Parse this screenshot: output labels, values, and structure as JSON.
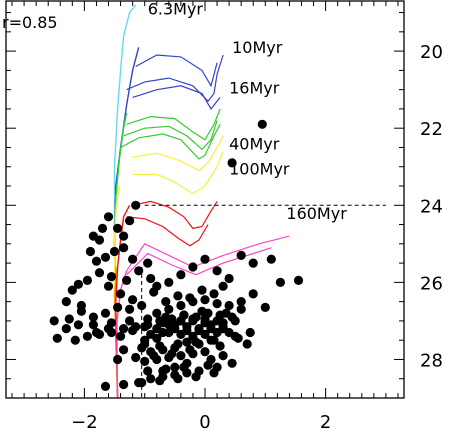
{
  "chart_data": {
    "type": "scatter",
    "title": "",
    "xlabel": "",
    "ylabel": "",
    "xlim": [
      -3.3,
      3.3
    ],
    "ylim": [
      18.7,
      29.0
    ],
    "y_inverted": true,
    "y_axis_side": "right",
    "grid": false,
    "xticks": [
      -2,
      0,
      2
    ],
    "xtick_labels": [
      "−2",
      "0",
      "2"
    ],
    "yticks": [
      20,
      22,
      24,
      26,
      28
    ],
    "ytick_labels": [
      "20",
      "22",
      "24",
      "26",
      "28"
    ],
    "corner_label": "r=0.85",
    "guide_line": {
      "y": 24.0,
      "x_from": -1.0,
      "x_to": 3.0,
      "x_drop": -1.05,
      "style": "dashed",
      "color": "#000000"
    },
    "isochrones": [
      {
        "name": "6.3Myr",
        "color": "#66d9ef",
        "label_at": [
          -0.95,
          19.05
        ],
        "ms": [
          [
            -1.45,
            29.0
          ],
          [
            -1.48,
            27.0
          ],
          [
            -1.5,
            25.0
          ],
          [
            -1.5,
            23.0
          ],
          [
            -1.45,
            21.5
          ],
          [
            -1.4,
            20.5
          ],
          [
            -1.35,
            19.6
          ],
          [
            -1.25,
            19.0
          ],
          [
            -1.15,
            18.8
          ]
        ],
        "branches": []
      },
      {
        "name": "10Myr",
        "color": "#3344cc",
        "label_at": [
          0.45,
          20.05
        ],
        "ms": [
          [
            -1.45,
            29.0
          ],
          [
            -1.48,
            27.0
          ],
          [
            -1.5,
            25.0
          ],
          [
            -1.48,
            23.5
          ],
          [
            -1.4,
            22.5
          ],
          [
            -1.3,
            21.4
          ],
          [
            -1.2,
            20.5
          ],
          [
            -1.1,
            19.9
          ]
        ],
        "branches": [
          [
            [
              -1.3,
              21.0
            ],
            [
              -1.0,
              20.8
            ],
            [
              -0.6,
              20.7
            ],
            [
              -0.2,
              20.9
            ],
            [
              0.05,
              21.3
            ],
            [
              0.15,
              21.1
            ],
            [
              0.2,
              20.6
            ],
            [
              0.3,
              20.1
            ]
          ],
          [
            [
              -1.15,
              20.4
            ],
            [
              -0.8,
              20.1
            ],
            [
              -0.4,
              20.15
            ],
            [
              -0.05,
              20.5
            ],
            [
              0.1,
              20.9
            ],
            [
              0.2,
              20.3
            ]
          ],
          [
            [
              -1.2,
              21.2
            ],
            [
              -0.8,
              21.0
            ],
            [
              -0.4,
              20.9
            ],
            [
              -0.05,
              21.1
            ],
            [
              0.1,
              21.5
            ],
            [
              0.25,
              21.2
            ]
          ]
        ]
      },
      {
        "name": "16Myr",
        "color": "#33cc33",
        "label_at": [
          0.4,
          21.1
        ],
        "ms": [
          [
            -1.45,
            29.0
          ],
          [
            -1.48,
            27.0
          ],
          [
            -1.5,
            25.0
          ],
          [
            -1.48,
            23.8
          ],
          [
            -1.42,
            22.8
          ],
          [
            -1.35,
            22.0
          ],
          [
            -1.3,
            21.6
          ]
        ],
        "branches": [
          [
            [
              -1.4,
              22.5
            ],
            [
              -1.1,
              22.25
            ],
            [
              -0.7,
              22.15
            ],
            [
              -0.4,
              22.3
            ],
            [
              -0.1,
              22.8
            ],
            [
              0.0,
              22.7
            ],
            [
              0.15,
              22.2
            ],
            [
              0.25,
              21.9
            ]
          ],
          [
            [
              -1.3,
              21.9
            ],
            [
              -0.9,
              21.7
            ],
            [
              -0.5,
              21.75
            ],
            [
              -0.2,
              22.1
            ],
            [
              0.0,
              22.3
            ],
            [
              0.15,
              21.9
            ],
            [
              0.25,
              21.5
            ]
          ],
          [
            [
              -1.35,
              22.2
            ],
            [
              -1.0,
              22.0
            ],
            [
              -0.6,
              21.95
            ],
            [
              -0.3,
              22.2
            ],
            [
              -0.05,
              22.55
            ],
            [
              0.1,
              22.3
            ],
            [
              0.2,
              21.8
            ]
          ]
        ]
      },
      {
        "name": "40Myr",
        "color": "#f2f23a",
        "label_at": [
          0.4,
          22.55
        ],
        "ms": [
          [
            -1.45,
            29.0
          ],
          [
            -1.48,
            27.5
          ],
          [
            -1.5,
            26.0
          ],
          [
            -1.5,
            24.8
          ],
          [
            -1.47,
            24.0
          ],
          [
            -1.42,
            23.5
          ]
        ],
        "branches": [
          [
            [
              -1.2,
              23.2
            ],
            [
              -0.8,
              23.2
            ],
            [
              -0.5,
              23.4
            ],
            [
              -0.2,
              23.7
            ],
            [
              0.0,
              23.5
            ],
            [
              0.2,
              23.0
            ],
            [
              0.3,
              22.6
            ]
          ],
          [
            [
              -1.2,
              22.75
            ],
            [
              -0.8,
              22.65
            ],
            [
              -0.4,
              22.85
            ],
            [
              -0.1,
              23.1
            ],
            [
              0.05,
              22.9
            ],
            [
              0.2,
              22.5
            ],
            [
              0.3,
              22.2
            ]
          ]
        ]
      },
      {
        "name": "100Myr",
        "color": "#ff9900",
        "label_at": [
          0.4,
          23.2
        ],
        "ms": [
          [
            -1.45,
            29.0
          ],
          [
            -1.48,
            27.5
          ],
          [
            -1.5,
            26.3
          ],
          [
            -1.46,
            25.6
          ]
        ],
        "branches": []
      },
      {
        "name": "160Myr",
        "color": "#ee1111",
        "label_at": [
          1.35,
          24.35
        ],
        "ms": [
          [
            -1.45,
            29.0
          ],
          [
            -1.47,
            27.5
          ],
          [
            -1.48,
            26.5
          ],
          [
            -1.45,
            25.6
          ],
          [
            -1.4,
            24.9
          ],
          [
            -1.35,
            24.3
          ],
          [
            -1.25,
            24.0
          ]
        ],
        "branches": [
          [
            [
              -1.2,
              24.0
            ],
            [
              -0.9,
              23.9
            ],
            [
              -0.6,
              24.05
            ],
            [
              -0.35,
              24.3
            ],
            [
              -0.2,
              24.6
            ],
            [
              -0.05,
              24.55
            ],
            [
              0.1,
              24.15
            ],
            [
              0.2,
              23.9
            ]
          ],
          [
            [
              -1.3,
              24.3
            ],
            [
              -1.0,
              24.35
            ],
            [
              -0.7,
              24.55
            ],
            [
              -0.45,
              24.85
            ],
            [
              -0.25,
              25.05
            ],
            [
              -0.1,
              24.9
            ],
            [
              0.05,
              24.5
            ]
          ]
        ]
      },
      {
        "name": "",
        "color": "#ff44cc",
        "label_at": null,
        "ms": [
          [
            -1.45,
            29.0
          ],
          [
            -1.46,
            28.0
          ],
          [
            -1.46,
            27.0
          ],
          [
            -1.4,
            26.2
          ],
          [
            -1.3,
            25.7
          ]
        ],
        "branches": [
          [
            [
              -1.3,
              25.7
            ],
            [
              -1.0,
              25.0
            ],
            [
              -0.6,
              25.3
            ],
            [
              -0.2,
              25.6
            ],
            [
              0.3,
              25.3
            ],
            [
              0.9,
              25.0
            ],
            [
              1.4,
              24.8
            ]
          ],
          [
            [
              -1.3,
              25.8
            ],
            [
              -0.95,
              25.25
            ],
            [
              -0.55,
              25.55
            ],
            [
              -0.15,
              25.8
            ],
            [
              0.3,
              25.5
            ],
            [
              0.8,
              25.25
            ],
            [
              1.1,
              25.1
            ]
          ]
        ]
      }
    ],
    "points": {
      "x": [
        0.95,
        0.45,
        -1.15,
        -1.25,
        -1.35,
        -1.45,
        -1.6,
        -1.7,
        -1.75,
        -1.85,
        -1.9,
        -1.8,
        -1.65,
        -1.5,
        -1.35,
        -1.2,
        -1.1,
        -0.95,
        -0.9,
        -1.3,
        -1.55,
        -1.75,
        -1.95,
        -2.1,
        -2.2,
        -2.3,
        -2.05,
        -1.6,
        -1.4,
        -1.2,
        -0.8,
        -0.6,
        -0.4,
        -0.2,
        0.0,
        0.2,
        0.4,
        0.6,
        0.8,
        1.1,
        1.25,
        1.55,
        0.3,
        0.15,
        -0.05,
        -0.25,
        -0.45,
        -0.65,
        -0.85,
        -1.05,
        -1.25,
        -1.45,
        -1.65,
        -1.85,
        -2.05,
        -2.25,
        -2.5,
        -2.3,
        -2.1,
        -1.8,
        -1.6,
        -1.4,
        -1.2,
        -1.0,
        -0.8,
        -0.6,
        -0.4,
        -0.2,
        0.0,
        0.2,
        0.4,
        0.6,
        0.45,
        0.25,
        0.05,
        -0.15,
        -0.35,
        -0.55,
        -0.75,
        -0.95,
        -1.15,
        -1.35,
        -1.55,
        -1.75,
        -1.95,
        -2.15,
        -2.45,
        -0.7,
        -0.5,
        -0.3,
        -0.1,
        0.1,
        0.3,
        0.5,
        -0.6,
        -0.4,
        -0.2,
        0.0,
        0.2,
        -0.8,
        -1.0,
        -0.3,
        -0.1,
        0.1,
        -0.5,
        -0.7,
        -0.9,
        0.3,
        0.5,
        0.7,
        0.0,
        -0.2,
        -0.4,
        -0.6,
        -0.8,
        -1.0,
        -0.3,
        -0.5,
        -0.7,
        0.1,
        0.3,
        0.2,
        -0.1,
        -0.3,
        -0.5,
        -0.7,
        -0.9,
        -1.1,
        -0.2,
        -0.4,
        0.0,
        0.4,
        0.6,
        0.8,
        1.0,
        0.35,
        -0.05,
        -0.35,
        -0.65,
        -0.95,
        -1.25,
        -1.55,
        -1.85,
        0.15,
        -0.15,
        -0.45,
        -0.75,
        -1.05,
        -1.35,
        0.55,
        0.75,
        0.25,
        -0.25,
        -0.55,
        -0.85,
        -1.15,
        -1.45,
        0.05,
        -0.35,
        -0.65,
        -0.95,
        0.45,
        0.15,
        -0.15,
        -0.45,
        -0.75,
        -1.05,
        -1.35,
        -1.65,
        -0.5,
        -0.3,
        -0.1,
        0.1,
        0.3,
        -0.7,
        -0.9,
        -0.2,
        0.0,
        -0.4,
        -0.6,
        0.2,
        -0.8,
        -1.0
      ],
      "y": [
        21.9,
        22.9,
        24.0,
        24.4,
        24.8,
        24.6,
        24.3,
        24.6,
        24.9,
        24.8,
        25.2,
        25.45,
        25.35,
        25.2,
        25.1,
        25.4,
        25.7,
        25.5,
        25.9,
        25.95,
        25.85,
        25.75,
        25.95,
        26.05,
        26.2,
        26.5,
        26.6,
        26.1,
        26.3,
        26.45,
        26.1,
        26.0,
        25.8,
        25.6,
        25.4,
        25.7,
        25.9,
        25.3,
        25.5,
        25.4,
        26.0,
        25.95,
        26.1,
        26.3,
        26.2,
        26.4,
        26.35,
        26.5,
        26.25,
        26.6,
        26.7,
        26.65,
        26.8,
        26.9,
        26.75,
        26.95,
        27.0,
        27.2,
        27.1,
        27.3,
        27.2,
        27.4,
        27.25,
        27.5,
        26.8,
        26.7,
        26.6,
        26.5,
        26.45,
        26.55,
        26.6,
        26.7,
        26.9,
        26.85,
        26.8,
        26.9,
        26.85,
        26.95,
        27.0,
        27.1,
        27.15,
        27.2,
        27.3,
        27.35,
        27.4,
        27.5,
        27.45,
        27.05,
        27.1,
        27.15,
        27.2,
        27.1,
        27.05,
        27.0,
        27.3,
        27.35,
        27.4,
        27.35,
        27.3,
        27.45,
        27.6,
        27.55,
        27.6,
        27.5,
        27.7,
        27.75,
        27.8,
        27.2,
        27.4,
        27.6,
        27.8,
        27.85,
        27.9,
        27.95,
        28.0,
        28.05,
        28.1,
        28.2,
        28.3,
        28.0,
        27.9,
        28.2,
        28.3,
        28.35,
        28.4,
        28.45,
        28.5,
        28.6,
        27.0,
        27.0,
        26.95,
        27.3,
        26.5,
        26.3,
        26.65,
        26.8,
        26.75,
        26.85,
        26.9,
        26.95,
        27.0,
        27.05,
        27.1,
        27.5,
        27.55,
        27.6,
        27.65,
        27.7,
        27.75,
        27.45,
        27.3,
        27.65,
        27.75,
        27.85,
        27.9,
        27.95,
        28.0,
        28.15,
        28.2,
        28.25,
        28.3,
        28.1,
        28.35,
        28.45,
        28.5,
        28.55,
        28.6,
        28.65,
        28.7,
        27.2,
        27.25,
        27.25,
        27.2,
        27.15,
        27.3,
        27.35,
        26.95,
        27.05,
        27.0,
        27.1,
        27.0,
        27.2,
        27.15
      ]
    }
  }
}
